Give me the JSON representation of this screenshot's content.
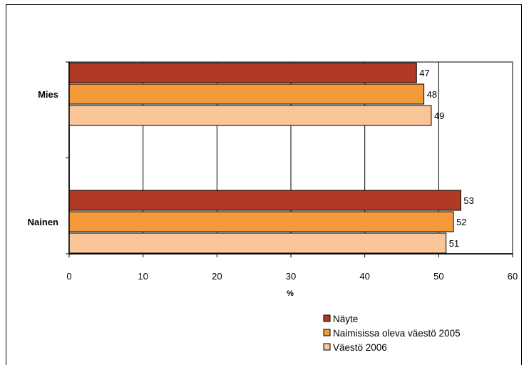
{
  "chart_data": {
    "type": "bar",
    "orientation": "horizontal",
    "categories": [
      "Mies",
      "Nainen"
    ],
    "series": [
      {
        "name": "Näyte",
        "values": [
          47,
          53
        ],
        "color": "#b03a25"
      },
      {
        "name": "Naimisissa oleva väestö 2005",
        "values": [
          48,
          52
        ],
        "color": "#f39a3a"
      },
      {
        "name": "Väestö 2006",
        "values": [
          49,
          51
        ],
        "color": "#fbc59a"
      }
    ],
    "xlabel": "%",
    "xlim": [
      0,
      60
    ],
    "xticks": [
      "0",
      "10",
      "20",
      "30",
      "40",
      "50",
      "60"
    ],
    "grid": true,
    "legend_position": "bottom-right"
  }
}
